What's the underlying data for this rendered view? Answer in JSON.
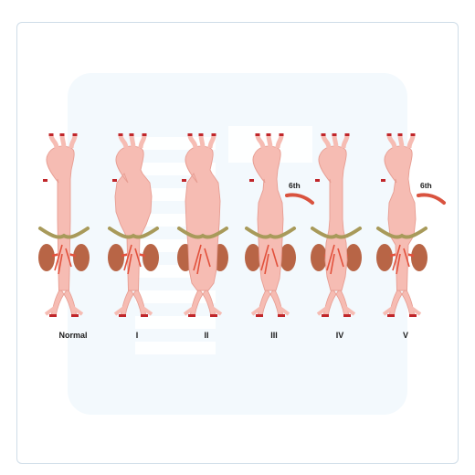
{
  "diagram": {
    "panels": [
      {
        "id": "normal",
        "label": "Normal",
        "dilation": "none",
        "sixth_label": ""
      },
      {
        "id": "type-1",
        "label": "I",
        "dilation": "ascending-descending-thoracic",
        "sixth_label": ""
      },
      {
        "id": "type-2",
        "label": "II",
        "dilation": "entire-thoracoabdominal",
        "sixth_label": ""
      },
      {
        "id": "type-3",
        "label": "III",
        "dilation": "lower-thoracic-abdominal",
        "sixth_label": "6th"
      },
      {
        "id": "type-4",
        "label": "IV",
        "dilation": "abdominal",
        "sixth_label": ""
      },
      {
        "id": "type-5",
        "label": "V",
        "dilation": "lower-thoracic-to-renal",
        "sixth_label": "6th"
      }
    ],
    "colors": {
      "aorta": "#f6bcb3",
      "aorta_outline": "#e79d92",
      "vessel_tip": "#c0262a",
      "artery": "#e2513c",
      "kidney": "#b86546",
      "celiac_trunk": "#a89a5a",
      "rib_marker": "#d9533f"
    }
  }
}
